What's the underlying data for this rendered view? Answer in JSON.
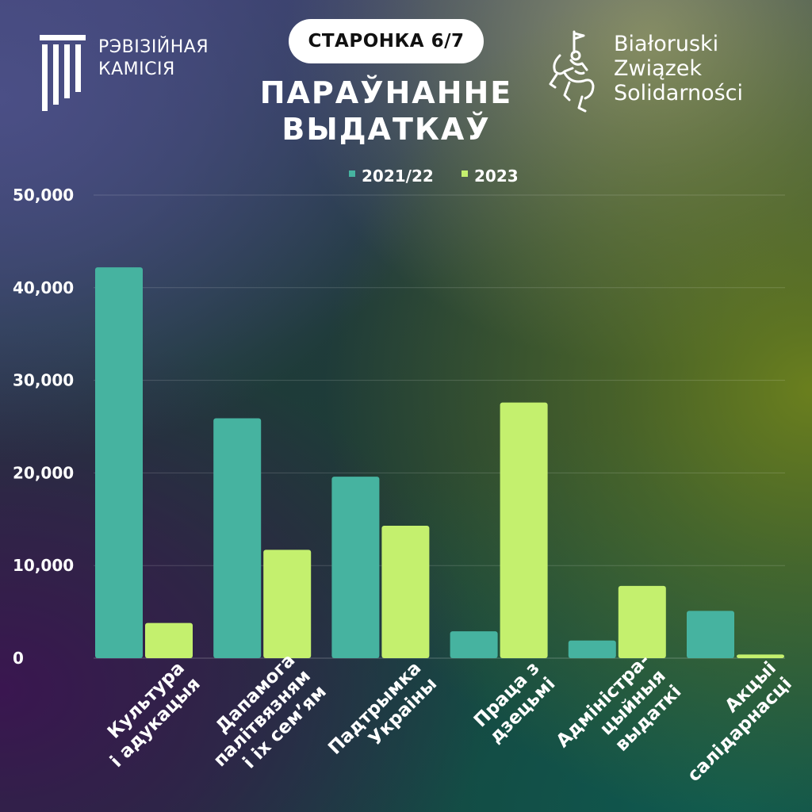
{
  "header": {
    "left_logo_lines": [
      "РЭВІЗІЙНАЯ",
      "КАМІСІЯ"
    ],
    "page_badge": "СТАРОНКА 6/7",
    "title_lines": [
      "ПАРАЎНАННЕ",
      "ВЫДАТКАЎ"
    ],
    "right_logo_lines": [
      "Białoruski",
      "Związek",
      "Solidarności"
    ]
  },
  "chart_data": {
    "type": "bar",
    "title": "ПАРАЎНАННЕ ВЫДАТКАЎ",
    "categories": [
      [
        "Культура",
        "і адукацыя"
      ],
      [
        "Дапамога",
        "палітвязням",
        "і іх сем’ям"
      ],
      [
        "Падтрымка",
        "Украіны"
      ],
      [
        "Праца з",
        "дзецьмі"
      ],
      [
        "Адміністра-",
        "цыйныя",
        "выдаткі"
      ],
      [
        "Акцыі",
        "салідарнасці"
      ]
    ],
    "series": [
      {
        "name": "2021/22",
        "color": "#46b3a0",
        "values": [
          42200,
          25900,
          19600,
          2900,
          1900,
          5100
        ]
      },
      {
        "name": "2023",
        "color": "#c4f06e",
        "values": [
          3800,
          11700,
          14300,
          27600,
          7800,
          400
        ]
      }
    ],
    "y_ticks": [
      "0",
      "10,000",
      "20,000",
      "30,000",
      "40,000",
      "50,000"
    ],
    "ylim": [
      0,
      50000
    ],
    "grid": true,
    "legend": "top-center"
  }
}
